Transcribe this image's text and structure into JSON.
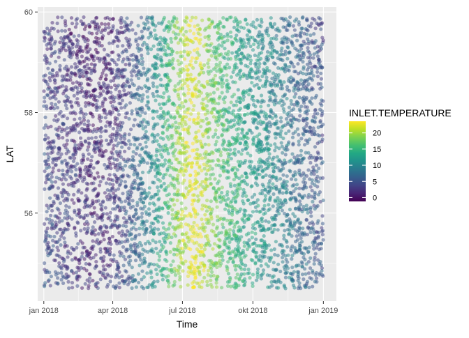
{
  "chart_data": {
    "type": "scatter",
    "title": "",
    "xlabel": "Time",
    "ylabel": "LAT",
    "x_tick_labels": [
      "jan 2018",
      "apr 2018",
      "jul 2018",
      "okt 2018",
      "jan 2019"
    ],
    "x_ticks_days": [
      0,
      90,
      181,
      273,
      365
    ],
    "xlim_days": [
      -8,
      382
    ],
    "ylim": [
      54.25,
      60.1
    ],
    "y_ticks": [
      56,
      58,
      60
    ],
    "grid": true,
    "color_variable": "INLET.TEMPERATURE",
    "color_scale": "viridis",
    "color_range": [
      -1.2,
      23.6
    ],
    "legend_ticks": [
      0,
      5,
      10,
      15,
      20
    ],
    "legend_position": "right",
    "point_opacity": 0.5,
    "lat_range": [
      54.5,
      59.9
    ],
    "seasonal_temperature": {
      "days": [
        0,
        30,
        60,
        90,
        120,
        150,
        165,
        180,
        195,
        210,
        225,
        240,
        270,
        300,
        330,
        365
      ],
      "values": [
        4.0,
        2.5,
        1.5,
        2.0,
        6.0,
        12.0,
        16.0,
        20.0,
        23.0,
        20.0,
        17.0,
        15.0,
        12.0,
        10.0,
        7.0,
        4.5
      ]
    },
    "panel_background": "#ebebeb",
    "grid_color": "#ffffff"
  }
}
